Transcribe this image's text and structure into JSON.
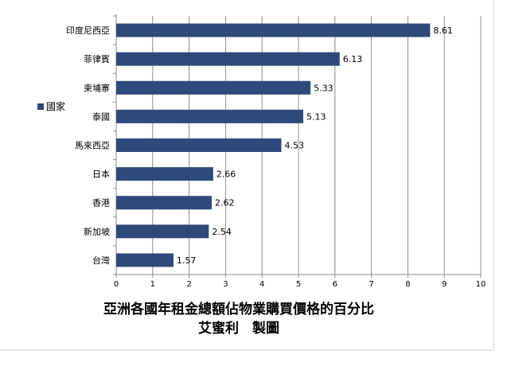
{
  "chart_data": {
    "type": "bar",
    "orientation": "horizontal",
    "categories": [
      "印度尼西亞",
      "菲律賓",
      "柬埔寨",
      "泰國",
      "馬來西亞",
      "日本",
      "香港",
      "新加坡",
      "台灣"
    ],
    "series": [
      {
        "name": "國家",
        "values": [
          8.61,
          6.13,
          5.33,
          5.13,
          4.53,
          2.66,
          2.62,
          2.54,
          1.57
        ]
      }
    ],
    "value_labels": [
      "8.61",
      "6.13",
      "5.33",
      "5.13",
      "4.53",
      "2.66",
      "2.62",
      "2.54",
      "1.57"
    ],
    "xlim": [
      0,
      10
    ],
    "x_ticks": [
      "0",
      "1",
      "2",
      "3",
      "4",
      "5",
      "6",
      "7",
      "8",
      "9",
      "10"
    ],
    "grid": "vertical",
    "legend_position": "left",
    "title": "亞洲各國年租金總額佔物業購買價格的百分比",
    "subtitle": "艾蜜利　製圖",
    "colors": {
      "bar": "#2e4a7a",
      "grid": "#8c8c8c",
      "axis": "#8c8c8c"
    }
  }
}
